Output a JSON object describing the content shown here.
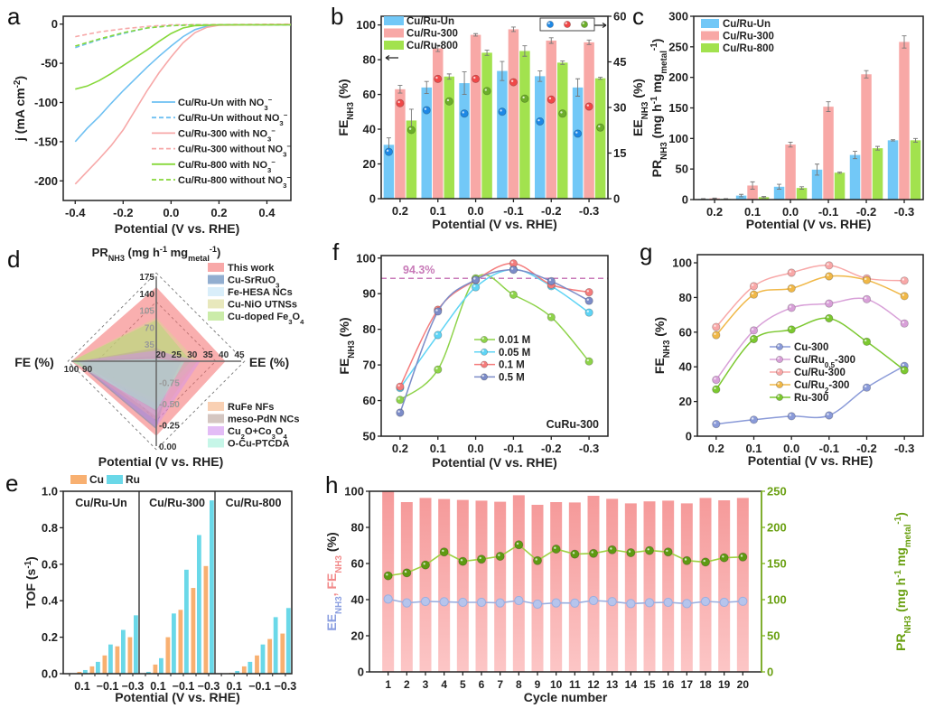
{
  "chart_data": [
    {
      "panel": "a",
      "type": "line",
      "xlabel": "Potential (V vs. RHE)",
      "ylabel": "j (mA cm{^-2})",
      "xlim": [
        -0.45,
        0.5
      ],
      "ylim": [
        -225,
        10
      ],
      "xticks": [
        "-0.4",
        "-0.2",
        "0.0",
        "0.2",
        "0.4"
      ],
      "yticks": [
        "0",
        "-50",
        "-100",
        "-150",
        "-200"
      ],
      "legend": "bottom-right",
      "series": [
        {
          "name": "Cu/Ru-Un with NO{_3}{^−}",
          "color": "#6ec0f2",
          "dashed": false,
          "points": [
            [
              -0.4,
              -150
            ],
            [
              -0.35,
              -133
            ],
            [
              -0.3,
              -118
            ],
            [
              -0.25,
              -101
            ],
            [
              -0.2,
              -85
            ],
            [
              -0.15,
              -70
            ],
            [
              -0.1,
              -55
            ],
            [
              -0.05,
              -41
            ],
            [
              0,
              -28
            ],
            [
              0.05,
              -16
            ],
            [
              0.1,
              -7
            ],
            [
              0.15,
              -2.5
            ],
            [
              0.2,
              -1
            ],
            [
              0.5,
              -1
            ]
          ]
        },
        {
          "name": "Cu/Ru-Un without NO{_3}{^−}",
          "color": "#6ec0f2",
          "dashed": true,
          "points": [
            [
              -0.4,
              -30
            ],
            [
              -0.3,
              -20
            ],
            [
              -0.2,
              -12
            ],
            [
              -0.1,
              -5
            ],
            [
              0,
              -2
            ],
            [
              0.1,
              -1
            ],
            [
              0.5,
              -1
            ]
          ]
        },
        {
          "name": "Cu/Ru-300 with NO{_3}{^−}",
          "color": "#f7a8a8",
          "dashed": false,
          "points": [
            [
              -0.4,
              -204
            ],
            [
              -0.35,
              -188
            ],
            [
              -0.3,
              -172
            ],
            [
              -0.25,
              -155
            ],
            [
              -0.2,
              -135
            ],
            [
              -0.15,
              -110
            ],
            [
              -0.1,
              -85
            ],
            [
              -0.05,
              -62
            ],
            [
              0,
              -42
            ],
            [
              0.05,
              -24
            ],
            [
              0.1,
              -11
            ],
            [
              0.15,
              -4
            ],
            [
              0.2,
              -1.5
            ],
            [
              0.5,
              -0.5
            ]
          ]
        },
        {
          "name": "Cu/Ru-300 without NO{_3}{^−}",
          "color": "#f7a8a8",
          "dashed": true,
          "points": [
            [
              -0.4,
              -16
            ],
            [
              -0.3,
              -10
            ],
            [
              -0.2,
              -6
            ],
            [
              -0.1,
              -3
            ],
            [
              0,
              -1
            ],
            [
              0.5,
              0
            ]
          ]
        },
        {
          "name": "Cu/Ru-800 with NO{_3}{^−}",
          "color": "#86d83a",
          "dashed": false,
          "points": [
            [
              -0.4,
              -83
            ],
            [
              -0.35,
              -79
            ],
            [
              -0.3,
              -72
            ],
            [
              -0.25,
              -63
            ],
            [
              -0.2,
              -53
            ],
            [
              -0.15,
              -43
            ],
            [
              -0.1,
              -33
            ],
            [
              -0.05,
              -22
            ],
            [
              0,
              -12
            ],
            [
              0.05,
              -5
            ],
            [
              0.1,
              -2
            ],
            [
              0.2,
              -1
            ],
            [
              0.5,
              -1
            ]
          ]
        },
        {
          "name": "Cu/Ru-800 without NO{_3}{^−}",
          "color": "#86d83a",
          "dashed": true,
          "points": [
            [
              -0.4,
              -28
            ],
            [
              -0.3,
              -19
            ],
            [
              -0.2,
              -11
            ],
            [
              -0.1,
              -5
            ],
            [
              0,
              -2
            ],
            [
              0.1,
              -1
            ],
            [
              0.5,
              -1
            ]
          ]
        }
      ]
    },
    {
      "panel": "b",
      "type": "bar",
      "categories": [
        "0.2",
        "0.1",
        "0.0",
        "-0.1",
        "-0.2",
        "-0.3"
      ],
      "xlabel": "Potential (V vs. RHE)",
      "ylabel": "FE{_NH3} (%)",
      "ylabel_right": "EE{_NH3} (%)",
      "ylim": [
        0,
        105
      ],
      "ylim_right": [
        0,
        60
      ],
      "yticks": [
        "0",
        "20",
        "40",
        "60",
        "80",
        "100"
      ],
      "yticks_right": [
        "0",
        "15",
        "30",
        "45",
        "60"
      ],
      "legend": "top-left",
      "series": [
        {
          "name": "Cu/Ru-Un",
          "color": "#72c8f7",
          "dot_color": "#1e88e5",
          "fe": [
            31,
            64,
            66.5,
            73.5,
            70.5,
            64
          ],
          "fe_err": [
            4,
            3.5,
            6.5,
            5.5,
            3,
            5
          ],
          "ee": [
            15.4,
            29.1,
            28,
            28.6,
            25.4,
            21.4
          ]
        },
        {
          "name": "Cu/Ru-300",
          "color": "#f8a8a6",
          "dot_color": "#f04848",
          "fe": [
            63,
            86.5,
            94.3,
            97.5,
            91,
            90
          ],
          "fe_err": [
            2.2,
            1.8,
            0.7,
            1.3,
            1.6,
            1.3
          ],
          "ee": [
            31.4,
            39.4,
            39.4,
            38.3,
            32.6,
            30.3
          ]
        },
        {
          "name": "Cu/Ru-800",
          "color": "#a2e24e",
          "dot_color": "#6cae2a",
          "fe": [
            45,
            70.3,
            84,
            85,
            78.3,
            69.3
          ],
          "fe_err": [
            6.5,
            1.5,
            1.5,
            3,
            1,
            0.6
          ],
          "ee": [
            22.6,
            32,
            35.4,
            32.9,
            28,
            23.4
          ]
        }
      ]
    },
    {
      "panel": "c",
      "type": "bar",
      "categories": [
        "0.2",
        "0.1",
        "0.0",
        "-0.1",
        "-0.2",
        "-0.3"
      ],
      "xlabel": "Potential (V vs. RHE)",
      "ylabel": "PR{_NH3} (mg h{^-1} mg{_metal}{^-1})",
      "ylim": [
        0,
        300
      ],
      "yticks": [
        "0",
        "50",
        "100",
        "150",
        "200",
        "250",
        "300"
      ],
      "legend": "top-left",
      "series": [
        {
          "name": "Cu/Ru-Un",
          "color": "#72c8f7",
          "values": [
            1,
            6.5,
            21,
            49,
            73,
            97
          ],
          "err": [
            0.5,
            2,
            4,
            9,
            6,
            1
          ]
        },
        {
          "name": "Cu/Ru-300",
          "color": "#f8a8a6",
          "values": [
            2,
            23,
            90,
            152,
            205,
            258
          ],
          "err": [
            0.5,
            6,
            4,
            8,
            6,
            10
          ]
        },
        {
          "name": "Cu/Ru-800",
          "color": "#a2e24e",
          "values": [
            1,
            4,
            19,
            44,
            84,
            97
          ],
          "err": [
            0.5,
            1,
            2,
            1,
            3,
            3
          ]
        }
      ]
    },
    {
      "panel": "d",
      "type": "radar",
      "axes": [
        {
          "label": "PR{_NH3} (mg h{^-1} mg{_metal}{^-1})",
          "range": [
            0,
            175
          ],
          "ticks": [
            "35",
            "70",
            "105",
            "140",
            "175"
          ]
        },
        {
          "label": "EE (%)",
          "range": [
            18,
            45
          ],
          "ticks": [
            "20",
            "25",
            "30",
            "35",
            "40",
            "45"
          ]
        },
        {
          "label": "Potential (V vs. RHE)",
          "range": [
            -1,
            0
          ],
          "ticks": [
            "-0.75",
            "-0.50",
            "-0.25",
            "0.00"
          ]
        },
        {
          "label": "FE (%)",
          "range": [
            15,
            100
          ],
          "ticks": [
            "90",
            "100"
          ]
        }
      ],
      "series": [
        {
          "name": "This work",
          "color": "#f46e6e",
          "values": [
            153,
            40,
            -0.12,
            100
          ]
        },
        {
          "name": "Cu-SrRuO{_3}",
          "color": "#4a78b0",
          "values": [
            10,
            24,
            -0.2,
            96
          ]
        },
        {
          "name": "Fe-HESA NCs",
          "color": "#bfe3f7",
          "values": [
            5,
            27,
            -0.35,
            92
          ]
        },
        {
          "name": "Cu-NiO UTNSs",
          "color": "#d8d890",
          "values": [
            90,
            31,
            -0.5,
            100
          ]
        },
        {
          "name": "Cu-doped Fe{_3}O{_4}",
          "color": "#a8e070",
          "values": [
            85,
            29,
            -0.55,
            100
          ]
        },
        {
          "name": "RuFe NFs",
          "color": "#f5b080",
          "values": [
            8,
            31,
            -0.3,
            96
          ]
        },
        {
          "name": "meso-PdN NCs",
          "color": "#b8a098",
          "values": [
            28,
            26,
            -0.4,
            92
          ]
        },
        {
          "name": "Cu{_2}O+Co{_3}O{_4}",
          "color": "#d090f0",
          "values": [
            22,
            32,
            -0.22,
            94
          ]
        },
        {
          "name": "O-Cu-PTCDA",
          "color": "#a0f0d8",
          "values": [
            5,
            27,
            -0.42,
            100
          ]
        }
      ]
    },
    {
      "panel": "e",
      "type": "bar",
      "xlabel": "Potential (V vs. RHE)",
      "ylabel": "TOF (s{^-1})",
      "ylim": [
        0,
        1.0
      ],
      "yticks": [
        "0.0",
        "0.2",
        "0.4",
        "0.6",
        "0.8",
        "1.0"
      ],
      "x_values": [
        0.2,
        0.1,
        0.0,
        -0.1,
        -0.2,
        -0.3
      ],
      "x_tick_labels": [
        "0.1",
        "−0.1",
        "−0.3"
      ],
      "legend": "top",
      "series": [
        {
          "name": "Cu",
          "color": "#f8b071"
        },
        {
          "name": "Ru",
          "color": "#6ad8e8"
        }
      ],
      "groups": [
        {
          "name": "Cu/Ru-Un",
          "Cu": [
            0,
            0.01,
            0.04,
            0.1,
            0.15,
            0.2
          ],
          "Ru": [
            0,
            0.02,
            0.065,
            0.16,
            0.24,
            0.32
          ]
        },
        {
          "name": "Cu/Ru-300",
          "Cu": [
            0,
            0.05,
            0.2,
            0.35,
            0.47,
            0.59
          ],
          "Ru": [
            0.01,
            0.085,
            0.33,
            0.57,
            0.76,
            0.95
          ]
        },
        {
          "name": "Cu/Ru-800",
          "Cu": [
            0,
            0.005,
            0.04,
            0.1,
            0.19,
            0.22
          ],
          "Ru": [
            0,
            0.015,
            0.065,
            0.16,
            0.31,
            0.36
          ]
        }
      ]
    },
    {
      "panel": "f",
      "type": "line",
      "categories": [
        "0.2",
        "0.1",
        "0.0",
        "-0.1",
        "-0.2",
        "-0.3"
      ],
      "xlabel": "Potential (V vs. RHE)",
      "ylabel": "FE{_NH3} (%)",
      "ylim": [
        50,
        100.7
      ],
      "yticks": [
        "50",
        "60",
        "70",
        "80",
        "90",
        "100"
      ],
      "reference_line": {
        "value": 94.3,
        "label": "94.3%",
        "color": "#c87ab8"
      },
      "annotation": "CuRu-300",
      "legend": "center",
      "series": [
        {
          "name": "0.01 M",
          "color": "#8ed34a",
          "values": [
            60.2,
            68.7,
            94.3,
            89.7,
            83.4,
            71
          ]
        },
        {
          "name": "0.05 M",
          "color": "#5fd4f5",
          "values": [
            63.5,
            78.4,
            91.8,
            96.8,
            92.1,
            84.7
          ]
        },
        {
          "name": "0.1 M",
          "color": "#f47c7c",
          "values": [
            63.9,
            85.5,
            93.8,
            98.5,
            92.5,
            90.4
          ]
        },
        {
          "name": "0.5 M",
          "color": "#7c8cc8",
          "values": [
            56.6,
            85,
            93.9,
            96.7,
            93.5,
            88
          ]
        }
      ]
    },
    {
      "panel": "g",
      "type": "line",
      "categories": [
        "0.2",
        "0.1",
        "0.0",
        "-0.1",
        "-0.2",
        "-0.3"
      ],
      "xlabel": "Potential (V vs. RHE)",
      "ylabel": "FE{_NH3} (%)",
      "ylim": [
        0,
        104.7
      ],
      "yticks": [
        "0",
        "20",
        "40",
        "60",
        "80",
        "100"
      ],
      "legend": "center",
      "series": [
        {
          "name": "Cu-300",
          "color": "#8a9ad8",
          "values": [
            7,
            9.5,
            11.5,
            12,
            28,
            40.5
          ]
        },
        {
          "name": "Cu/Ru{_0.5}-300",
          "color": "#d8a0d8",
          "values": [
            32.5,
            61,
            74,
            76.5,
            79,
            65
          ]
        },
        {
          "name": "Cu/Ru-300",
          "color": "#f8a8a8",
          "values": [
            63,
            86.5,
            94.3,
            98.5,
            91,
            89.7
          ]
        },
        {
          "name": "Cu/Ru{_2}-300",
          "color": "#f0b848",
          "values": [
            58.3,
            81.7,
            85.2,
            92.2,
            90,
            80.8
          ]
        },
        {
          "name": "Ru-300",
          "color": "#7cc830",
          "values": [
            27,
            56,
            61.5,
            68,
            54.5,
            38
          ]
        }
      ]
    },
    {
      "panel": "h",
      "type": "bar",
      "xlabel": "Cycle number",
      "ylabel": "EE{_NH3}, FE{_NH3} (%)",
      "ylabel_right": "PR{_NH3} (mg h{^-1} mg{_metal}{^-1})",
      "xlim": [
        0,
        21
      ],
      "ylim": [
        0,
        100
      ],
      "ylim_right": [
        0,
        250
      ],
      "categories": [
        "1",
        "2",
        "3",
        "4",
        "5",
        "6",
        "7",
        "8",
        "9",
        "10",
        "11",
        "12",
        "13",
        "14",
        "15",
        "16",
        "17",
        "18",
        "19",
        "20"
      ],
      "yticks": [
        "0",
        "20",
        "40",
        "60",
        "80",
        "100"
      ],
      "yticks_right": [
        "0",
        "50",
        "100",
        "150",
        "200",
        "250"
      ],
      "series": [
        {
          "name": "FE",
          "color": "#f5a0a0",
          "values": [
            100,
            94,
            96.3,
            95.7,
            95.2,
            94.8,
            94.2,
            97.8,
            92.5,
            94,
            93.8,
            97.5,
            95.8,
            93.3,
            94.4,
            94.8,
            93.3,
            96.3,
            95,
            96.3
          ]
        },
        {
          "name": "EE",
          "color": "#9aaee0",
          "values": [
            40.3,
            38.2,
            39,
            38.8,
            38.5,
            38.5,
            38.2,
            39.5,
            37.5,
            38.2,
            38.1,
            39.5,
            38.9,
            37.8,
            38.3,
            38.5,
            37.8,
            39,
            38.5,
            39.1
          ]
        },
        {
          "name": "PR",
          "color": "#5e9a12",
          "axis": "right",
          "values": [
            133,
            137,
            148,
            166,
            153,
            156,
            160,
            176,
            154,
            170,
            163,
            164,
            169,
            165,
            168,
            166,
            154,
            152,
            158,
            159
          ]
        }
      ]
    }
  ]
}
